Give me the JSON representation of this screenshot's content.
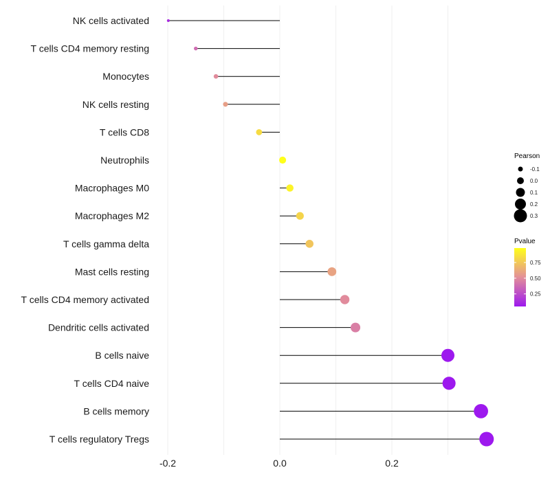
{
  "chart_data": {
    "type": "lollipop",
    "title": "",
    "xlabel": "",
    "ylabel": "",
    "xlim": [
      -0.2,
      0.37
    ],
    "xticks": [
      {
        "value": -0.2,
        "label": "-0.2"
      },
      {
        "value": 0.0,
        "label": "0.0"
      },
      {
        "value": 0.2,
        "label": "0.2"
      }
    ],
    "grid": true,
    "points": [
      {
        "label": "NK cells activated",
        "pearson": -0.199,
        "pvalue": 0.12
      },
      {
        "label": "T cells CD4 memory resting",
        "pearson": -0.15,
        "pvalue": 0.38
      },
      {
        "label": "Monocytes",
        "pearson": -0.114,
        "pvalue": 0.5
      },
      {
        "label": "NK cells resting",
        "pearson": -0.097,
        "pvalue": 0.58
      },
      {
        "label": "T cells CD8",
        "pearson": -0.037,
        "pvalue": 0.83
      },
      {
        "label": "Neutrophils",
        "pearson": 0.005,
        "pvalue": 0.98
      },
      {
        "label": "Macrophages M0",
        "pearson": 0.018,
        "pvalue": 0.93
      },
      {
        "label": "Macrophages M2",
        "pearson": 0.036,
        "pvalue": 0.8
      },
      {
        "label": "T cells gamma delta",
        "pearson": 0.053,
        "pvalue": 0.74
      },
      {
        "label": "Mast cells resting",
        "pearson": 0.093,
        "pvalue": 0.6
      },
      {
        "label": "T cells CD4 memory activated",
        "pearson": 0.116,
        "pvalue": 0.5
      },
      {
        "label": "Dendritic cells activated",
        "pearson": 0.135,
        "pvalue": 0.45
      },
      {
        "label": "B cells naive",
        "pearson": 0.3,
        "pvalue": 0.05
      },
      {
        "label": "T cells CD4 naive",
        "pearson": 0.302,
        "pvalue": 0.05
      },
      {
        "label": "B cells memory",
        "pearson": 0.359,
        "pvalue": 0.02
      },
      {
        "label": "T cells regulatory  Tregs",
        "pearson": 0.369,
        "pvalue": 0.02
      }
    ],
    "legend": {
      "size": {
        "title": "Pearson",
        "values": [
          -0.1,
          0.0,
          0.1,
          0.2,
          0.3
        ],
        "labels": [
          "-0.1",
          "0.0",
          "0.1",
          "0.2",
          "0.3"
        ]
      },
      "color": {
        "title": "Pvalue",
        "range": [
          0.05,
          0.98
        ],
        "ticks": [
          {
            "value": 0.75,
            "label": "0.75"
          },
          {
            "value": 0.5,
            "label": "0.50"
          },
          {
            "value": 0.25,
            "label": "0.25"
          }
        ],
        "low_color": "#9d19ee",
        "mid_color": "#e38f99",
        "high_color": "#ffff1a"
      }
    },
    "colors": {
      "stem": "#000000",
      "grid": "#ebebeb"
    }
  }
}
